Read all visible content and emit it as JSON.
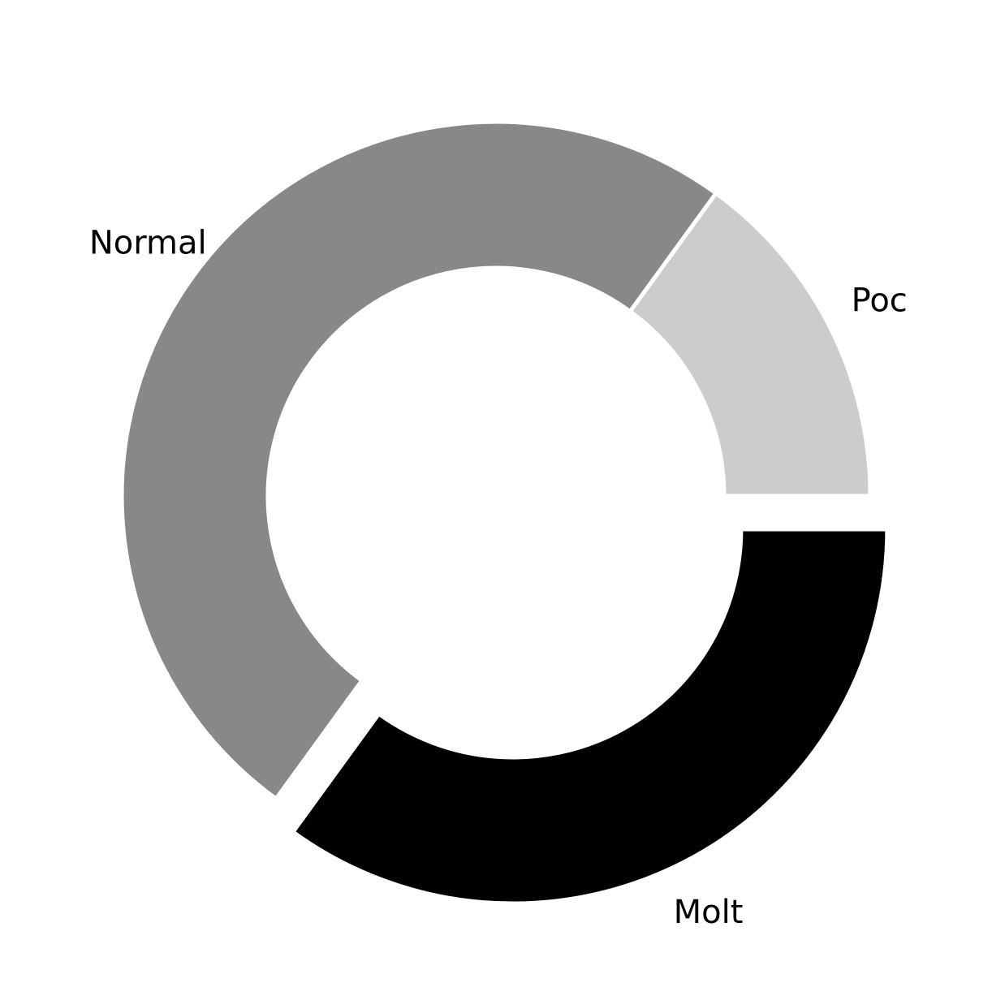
{
  "chart_data": {
    "type": "pie",
    "style": "donut",
    "start_angle_deg": 0,
    "direction": "counterclockwise",
    "slices": [
      {
        "label": "Poc",
        "value": 15,
        "color": "#cccccc",
        "exploded": false
      },
      {
        "label": "Normal",
        "value": 50,
        "color": "#888888",
        "exploded": false
      },
      {
        "label": "Molt",
        "value": 35,
        "color": "#000000",
        "exploded": true
      }
    ],
    "title": "",
    "legend": "none"
  }
}
